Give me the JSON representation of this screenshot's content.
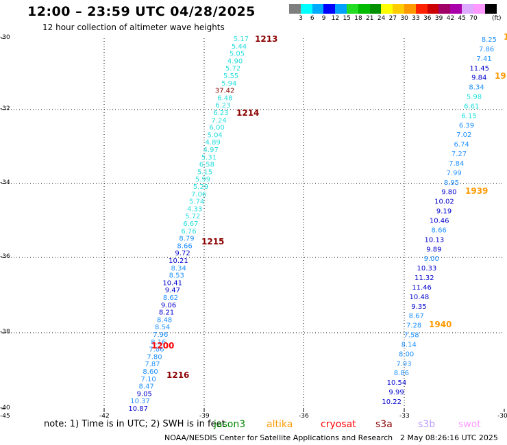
{
  "header": {
    "title": "12:00 – 23:59 UTC 04/28/2025",
    "subtitle": "12 hour collection of altimeter wave heights"
  },
  "colorbar": {
    "colors": [
      "#7f7f7f",
      "#00ffff",
      "#00aaff",
      "#0000ff",
      "#00a0ff",
      "#22dd22",
      "#00bb00",
      "#009000",
      "#ffff00",
      "#ffcc00",
      "#ff9900",
      "#ff2200",
      "#cc0000",
      "#a00066",
      "#aa00aa",
      "#ddaaff",
      "#ff99ff",
      "#000000"
    ],
    "labels": [
      "3",
      "6",
      "9",
      "12",
      "15",
      "18",
      "21",
      "24",
      "27",
      "30",
      "33",
      "36",
      "39",
      "42",
      "45",
      "70"
    ],
    "unit": "(ft)"
  },
  "axes": {
    "y_labels": [
      "-30",
      "-32",
      "-34",
      "-36",
      "-38",
      "-40",
      "-45"
    ],
    "x_labels": [
      "-42",
      "-39",
      "-36",
      "-33",
      "-30"
    ]
  },
  "passes": [
    {
      "label": "1213",
      "color": "#8b0000"
    },
    {
      "label": "1214",
      "color": "#8b0000"
    },
    {
      "label": "1215",
      "color": "#8b0000"
    },
    {
      "label": "1216",
      "color": "#8b0000"
    },
    {
      "label": "1200",
      "color": "#ff0000"
    },
    {
      "label": "1939",
      "color": "#ff9900"
    },
    {
      "label": "1940",
      "color": "#ff9900"
    },
    {
      "label": "19",
      "color": "#ff9900"
    },
    {
      "label": "1",
      "color": "#ff9900"
    }
  ],
  "left_track": {
    "values": [
      "5.17",
      "5.44",
      "5.05",
      "4.90",
      "5.72",
      "5.55",
      "5.94",
      "37.42",
      "6.48",
      "6.23",
      "6.23",
      "7.24",
      "6.00",
      "5.04",
      "4.89",
      "4.97",
      "5.31",
      "6.58",
      "5.15",
      "5.99",
      "5.29",
      "7.06",
      "5.74",
      "4.33",
      "5.72",
      "6.67",
      "6.76",
      "8.79",
      "8.66",
      "9.72",
      "10.21",
      "8.34",
      "8.53",
      "10.41",
      "9.47",
      "8.62",
      "9.06",
      "8.21",
      "8.48",
      "8.54",
      "7.96",
      "8.16",
      "7.86",
      "7.80",
      "7.87",
      "8.60",
      "7.10",
      "8.47",
      "9.05",
      "10.37",
      "10.87"
    ],
    "colors": [
      "cyan",
      "cyan",
      "cyan",
      "cyan",
      "cyan",
      "cyan",
      "cyan",
      "darkred",
      "cyan",
      "cyan",
      "cyan",
      "cyan",
      "cyan",
      "cyan",
      "cyan",
      "cyan",
      "cyan",
      "cyan",
      "cyan",
      "cyan",
      "cyan",
      "cyan",
      "cyan",
      "cyan",
      "cyan",
      "cyan",
      "cyan",
      "sky",
      "sky",
      "blue",
      "blue",
      "sky",
      "sky",
      "blue",
      "blue",
      "sky",
      "blue",
      "blue",
      "sky",
      "sky",
      "sky",
      "sky",
      "sky",
      "sky",
      "sky",
      "sky",
      "sky",
      "sky",
      "blue",
      "sky",
      "blue"
    ]
  },
  "right_track": {
    "values": [
      "8.25",
      "7.86",
      "7.41",
      "11.45",
      "9.84",
      "8.34",
      "5.98",
      "6.61",
      "6.15",
      "6.39",
      "7.02",
      "6.74",
      "7.27",
      "7.84",
      "7.99",
      "8.95",
      "9.80",
      "10.02",
      "9.19",
      "10.46",
      "8.66",
      "10.13",
      "9.89",
      "9.00",
      "10.33",
      "11.32",
      "11.46",
      "10.48",
      "9.35",
      "8.67",
      "7.28",
      "7.58",
      "8.14",
      "8.00",
      "7.93",
      "8.86",
      "10.54",
      "9.99",
      "10.22"
    ],
    "colors": [
      "sky",
      "sky",
      "sky",
      "blue",
      "blue",
      "sky",
      "cyan",
      "cyan",
      "cyan",
      "sky",
      "sky",
      "sky",
      "sky",
      "sky",
      "sky",
      "sky",
      "blue",
      "blue",
      "blue",
      "blue",
      "sky",
      "blue",
      "blue",
      "sky",
      "blue",
      "blue",
      "blue",
      "blue",
      "blue",
      "sky",
      "sky",
      "sky",
      "sky",
      "sky",
      "sky",
      "sky",
      "blue",
      "blue",
      "blue"
    ]
  },
  "footer": {
    "note": "note:  1) Time is in UTC; 2) SWH is in feet",
    "satellites": [
      {
        "name": "jason3",
        "color": "#008800"
      },
      {
        "name": "altika",
        "color": "#ff9900"
      },
      {
        "name": "cryosat",
        "color": "#ff0000"
      },
      {
        "name": "s3a",
        "color": "#8b0000"
      },
      {
        "name": "s3b",
        "color": "#bb99ff"
      },
      {
        "name": "swot",
        "color": "#ff99ff"
      }
    ],
    "credit": "NOAA/NESDIS Center for Satellite Applications and Research",
    "timestamp": "2 May 08:26:16 UTC 2025"
  }
}
